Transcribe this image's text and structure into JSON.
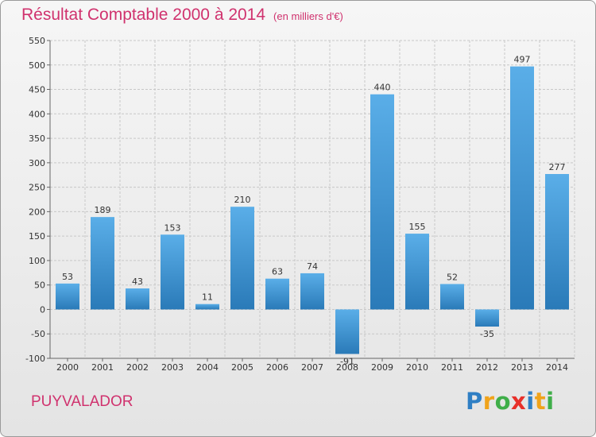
{
  "chart_data": {
    "type": "bar",
    "title": "Résultat Comptable 2000 à 2014",
    "subtitle": "(en milliers d'€)",
    "categories": [
      "2000",
      "2001",
      "2002",
      "2003",
      "2004",
      "2005",
      "2006",
      "2007",
      "2008",
      "2009",
      "2010",
      "2011",
      "2012",
      "2013",
      "2014"
    ],
    "values": [
      53,
      189,
      43,
      153,
      11,
      210,
      63,
      74,
      -91,
      440,
      155,
      52,
      -35,
      497,
      277
    ],
    "ylim": [
      -100,
      550
    ],
    "yticks": [
      -100,
      -50,
      0,
      50,
      100,
      150,
      200,
      250,
      300,
      350,
      400,
      450,
      500,
      550
    ],
    "xlabel": "",
    "ylabel": "",
    "grid": true,
    "bar_color_light": "#5aaee8",
    "bar_color_dark": "#2a7ab8"
  },
  "entity_name": "PUYVALADOR",
  "brand": {
    "letters": [
      {
        "ch": "P",
        "color": "#2f7fc4"
      },
      {
        "ch": "r",
        "color": "#f0a31a"
      },
      {
        "ch": "o",
        "color": "#3fae49"
      },
      {
        "ch": "x",
        "color": "#e8302a"
      },
      {
        "ch": "i",
        "color": "#2f7fc4"
      },
      {
        "ch": "t",
        "color": "#f0a31a"
      },
      {
        "ch": "i",
        "color": "#3fae49"
      }
    ]
  },
  "colors": {
    "title": "#d0326e",
    "grid": "#c8c8c8",
    "axis": "#666666"
  }
}
